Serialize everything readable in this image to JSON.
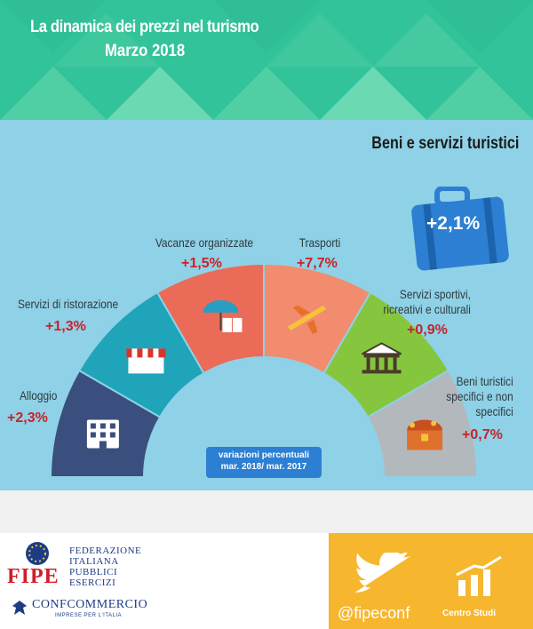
{
  "header": {
    "title": "La dinamica dei prezzi nel turismo",
    "subtitle": "Marzo  2018"
  },
  "section_title": "Beni e servizi turistici",
  "total": {
    "value": "+2,1%",
    "icon": "suitcase-icon"
  },
  "categories": [
    {
      "label": "Alloggio",
      "value": "+2,3%",
      "color": "#3a4f7e",
      "icon": "hotel-building-icon"
    },
    {
      "label": "Servizi di ristorazione",
      "value": "+1,3%",
      "color": "#1fa4b9",
      "icon": "restaurant-awning-icon"
    },
    {
      "label": "Vacanze organizzate",
      "value": "+1,5%",
      "color": "#ea6b57",
      "icon": "umbrella-book-icon"
    },
    {
      "label": "Trasporti",
      "value": "+7,7%",
      "color": "#f28c6f",
      "icon": "airplane-icon"
    },
    {
      "label": "Servizi sportivi, ricreativi e culturali",
      "label_lines": [
        "Servizi sportivi,",
        "ricreativi e culturali"
      ],
      "value": "+0,9%",
      "color": "#86c63f",
      "icon": "museum-icon"
    },
    {
      "label": "Beni turistici specifici e non specifici",
      "label_lines": [
        "Beni turistici",
        "specifici e non",
        "specifici"
      ],
      "value": "+0,7%",
      "color": "#b3b8bd",
      "icon": "treasure-chest-icon"
    }
  ],
  "variation_note": {
    "line1": "variazioni percentuali",
    "line2": "mar. 2018/ mar.  2017"
  },
  "footer": {
    "fipe": "FIPE",
    "federazione_lines": [
      "FEDERAZIONE",
      "ITALIANA",
      "PUBBLICI",
      "ESERCIZI"
    ],
    "confcommercio": "CONFCOMMERCIO",
    "confcommercio_sub": "IMPRESE PER L'ITALIA",
    "twitter_handle": "@fipeconf",
    "centro_studi": "Centro Studi"
  }
}
